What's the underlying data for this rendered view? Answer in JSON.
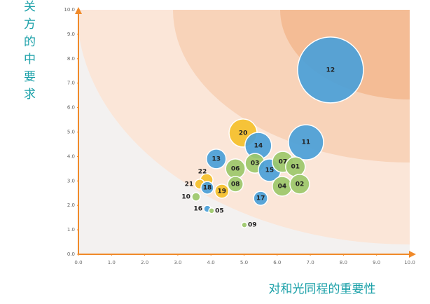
{
  "chart_data": {
    "type": "scatter",
    "x_label": "对和光同程的重要性",
    "y_label": "对利益相关方的中要求",
    "xlim": [
      0,
      10
    ],
    "ylim": [
      0,
      10
    ],
    "xticks": [
      {
        "value": 0,
        "label": "0.0"
      },
      {
        "value": 1,
        "label": "1.0"
      },
      {
        "value": 2,
        "label": "2.0"
      },
      {
        "value": 3,
        "label": "3.0"
      },
      {
        "value": 4,
        "label": "4.0"
      },
      {
        "value": 5,
        "label": "5.0"
      },
      {
        "value": 6,
        "label": "6.0"
      },
      {
        "value": 7,
        "label": "7.0"
      },
      {
        "value": 8,
        "label": "8.0"
      },
      {
        "value": 9,
        "label": "9.0"
      },
      {
        "value": 10,
        "label": "10.0"
      }
    ],
    "yticks": [
      {
        "value": 0,
        "label": "0.0"
      },
      {
        "value": 1,
        "label": "1.0"
      },
      {
        "value": 2,
        "label": "2.0"
      },
      {
        "value": 3,
        "label": "3.0"
      },
      {
        "value": 4,
        "label": "4.0"
      },
      {
        "value": 5,
        "label": "5.0"
      },
      {
        "value": 6,
        "label": "6.0"
      },
      {
        "value": 7,
        "label": "7.0"
      },
      {
        "value": 8,
        "label": "8.0"
      },
      {
        "value": 9,
        "label": "9.0"
      },
      {
        "value": 10,
        "label": "10.0"
      }
    ],
    "labels": [
      "12",
      "11",
      "20",
      "14",
      "13",
      "06",
      "03",
      "15",
      "07",
      "01",
      "04",
      "02",
      "22",
      "21",
      "18",
      "08",
      "19",
      "17",
      "10",
      "16",
      "05",
      "09"
    ],
    "x": [
      7.61,
      6.87,
      4.97,
      5.43,
      4.16,
      4.74,
      5.33,
      5.77,
      6.17,
      6.55,
      6.15,
      6.68,
      3.87,
      3.66,
      3.89,
      4.74,
      4.33,
      5.5,
      3.55,
      3.89,
      4.02,
      5.01
    ],
    "values": [
      7.54,
      4.58,
      4.96,
      4.44,
      3.9,
      3.5,
      3.72,
      3.44,
      3.78,
      3.58,
      2.78,
      2.87,
      3.04,
      2.87,
      2.72,
      2.87,
      2.58,
      2.29,
      2.35,
      1.86,
      1.78,
      1.2
    ],
    "sizes": [
      47,
      25,
      20,
      19,
      14,
      14,
      14,
      16,
      15,
      14,
      14,
      14,
      9,
      7,
      9,
      11,
      10,
      10,
      6,
      5,
      4,
      4
    ],
    "colors": [
      "#4a9fd8",
      "#4a9fd8",
      "#f5c02a",
      "#4a9fd8",
      "#4a9fd8",
      "#9cc86a",
      "#9cc86a",
      "#4a9fd8",
      "#9cc86a",
      "#9cc86a",
      "#9cc86a",
      "#9cc86a",
      "#f5c02a",
      "#f5c02a",
      "#4a9fd8",
      "#9cc86a",
      "#f5c02a",
      "#4a9fd8",
      "#9cc86a",
      "#4a9fd8",
      "#9cc86a",
      "#9cc86a"
    ]
  }
}
